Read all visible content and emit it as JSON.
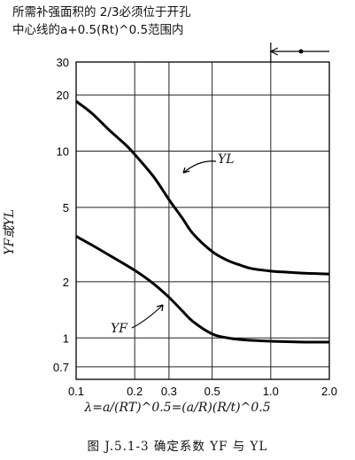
{
  "note": {
    "line1": "所需补强面积的 2/3必须位于开孔",
    "line2": "中心线的a+0.5(Rt)^0.5范围内"
  },
  "caption": "图 J.5.1-3  确定系数 YF 与 YL",
  "chart_data": {
    "type": "line",
    "title": "",
    "xlabel": "λ=a/(RT)^0.5=(a/R)(R/t)^0.5",
    "ylabel": "YF或YL",
    "x_scale": "log",
    "y_scale": "log",
    "xlim": [
      0.1,
      2.0
    ],
    "ylim": [
      0.6,
      30
    ],
    "x_ticks": [
      0.1,
      0.2,
      0.3,
      0.5,
      1.0,
      2.0
    ],
    "x_tick_labels": [
      "0.1",
      "0.2",
      "0.3",
      "0.5",
      "1.0",
      "2.0"
    ],
    "y_ticks": [
      0.7,
      1,
      2,
      5,
      10,
      20,
      30
    ],
    "y_tick_labels": [
      "0.7",
      "1",
      "2",
      "5",
      "10",
      "20",
      "30"
    ],
    "grid": true,
    "series": [
      {
        "name": "YL",
        "x": [
          0.1,
          0.12,
          0.15,
          0.18,
          0.2,
          0.25,
          0.3,
          0.35,
          0.4,
          0.5,
          0.6,
          0.7,
          0.8,
          1.0,
          1.2,
          1.5,
          2.0
        ],
        "y": [
          18.5,
          16.0,
          12.8,
          10.8,
          9.6,
          7.3,
          5.5,
          4.4,
          3.6,
          2.9,
          2.6,
          2.45,
          2.35,
          2.28,
          2.25,
          2.22,
          2.2
        ]
      },
      {
        "name": "YF",
        "x": [
          0.1,
          0.12,
          0.15,
          0.2,
          0.25,
          0.3,
          0.35,
          0.4,
          0.5,
          0.6,
          0.7,
          0.8,
          1.0,
          1.2,
          1.5,
          2.0
        ],
        "y": [
          3.5,
          3.15,
          2.75,
          2.3,
          1.95,
          1.65,
          1.4,
          1.22,
          1.05,
          1.0,
          0.98,
          0.97,
          0.96,
          0.955,
          0.95,
          0.95
        ]
      }
    ],
    "annotations": [
      "YL",
      "YF"
    ]
  }
}
